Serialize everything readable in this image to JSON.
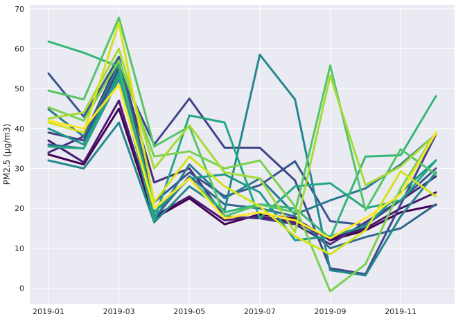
{
  "chart_data": {
    "type": "line",
    "xlabel": "",
    "ylabel": "PM2.5 (μg/m3)",
    "ylim": [
      -3.9,
      71.0
    ],
    "y_ticks": [
      0,
      10,
      20,
      30,
      40,
      50,
      60,
      70
    ],
    "x_ticks": [
      "2019-01",
      "2019-03",
      "2019-05",
      "2019-07",
      "2019-09",
      "2019-11"
    ],
    "x": [
      "2019-01",
      "2019-02",
      "2019-03",
      "2019-04",
      "2019-05",
      "2019-06",
      "2019-07",
      "2019-08",
      "2019-09",
      "2019-10",
      "2019-11",
      "2019-12"
    ],
    "grid": true,
    "background": "#eaeaf2",
    "series": [
      {
        "color": "#440154",
        "values": [
          33.5,
          31.0,
          45.0,
          17.5,
          22.5,
          16.0,
          18.5,
          17.5,
          12.0,
          14.5,
          19.0,
          20.8
        ]
      },
      {
        "color": "#481a6c",
        "values": [
          37.0,
          31.5,
          47.0,
          18.0,
          23.0,
          17.0,
          18.0,
          16.5,
          12.5,
          15.0,
          20.0,
          24.0
        ]
      },
      {
        "color": "#472f7d",
        "values": [
          34.0,
          38.0,
          57.0,
          26.5,
          30.0,
          18.0,
          17.5,
          16.0,
          11.0,
          16.5,
          22.0,
          28.0
        ]
      },
      {
        "color": "#414487",
        "values": [
          39.0,
          37.0,
          55.0,
          36.0,
          47.5,
          35.2,
          35.2,
          27.0,
          5.0,
          3.5,
          21.0,
          38.5
        ]
      },
      {
        "color": "#39568c",
        "values": [
          53.8,
          43.0,
          58.0,
          21.5,
          29.0,
          23.0,
          25.8,
          31.8,
          16.8,
          15.8,
          22.0,
          30.0
        ]
      },
      {
        "color": "#31688e",
        "values": [
          36.0,
          35.0,
          52.5,
          17.5,
          28.0,
          21.0,
          20.0,
          18.0,
          10.0,
          12.8,
          15.0,
          21.0
        ]
      },
      {
        "color": "#2a788e",
        "values": [
          44.8,
          38.0,
          56.0,
          17.0,
          31.0,
          22.5,
          27.5,
          18.5,
          22.0,
          25.0,
          31.0,
          38.5
        ]
      },
      {
        "color": "#23888e",
        "values": [
          32.0,
          30.0,
          41.5,
          16.5,
          25.5,
          19.5,
          58.5,
          47.3,
          4.5,
          3.2,
          18.0,
          29.0
        ]
      },
      {
        "color": "#1f988b",
        "values": [
          40.0,
          36.0,
          54.0,
          19.0,
          27.5,
          28.5,
          24.0,
          12.0,
          13.0,
          15.5,
          24.0,
          32.0
        ]
      },
      {
        "color": "#22a884",
        "values": [
          35.5,
          35.0,
          53.0,
          17.0,
          43.3,
          41.5,
          17.5,
          25.5,
          26.3,
          20.0,
          22.0,
          32.0
        ]
      },
      {
        "color": "#35b779",
        "values": [
          61.8,
          59.0,
          55.5,
          20.0,
          27.5,
          19.0,
          21.0,
          20.0,
          12.5,
          33.0,
          33.3,
          48.1
        ]
      },
      {
        "color": "#54c568",
        "values": [
          49.5,
          47.3,
          67.8,
          35.5,
          40.5,
          18.0,
          21.0,
          19.0,
          55.8,
          19.5,
          34.8,
          28.5
        ]
      },
      {
        "color": "#7ad151",
        "values": [
          45.3,
          42.0,
          57.0,
          33.0,
          34.3,
          30.0,
          32.0,
          20.5,
          -0.8,
          6.0,
          25.0,
          39.0
        ]
      },
      {
        "color": "#a5db36",
        "values": [
          42.5,
          44.0,
          60.0,
          30.0,
          40.8,
          29.0,
          27.5,
          14.0,
          53.3,
          25.8,
          30.5,
          38.5
        ]
      },
      {
        "color": "#d2e21b",
        "values": [
          41.5,
          39.0,
          66.5,
          21.5,
          33.0,
          25.5,
          20.5,
          13.0,
          8.5,
          14.5,
          29.3,
          23.0
        ]
      },
      {
        "color": "#fde725",
        "values": [
          42.0,
          40.0,
          51.0,
          20.0,
          27.5,
          17.5,
          19.0,
          17.0,
          12.5,
          17.5,
          23.5,
          39.0
        ]
      }
    ]
  }
}
